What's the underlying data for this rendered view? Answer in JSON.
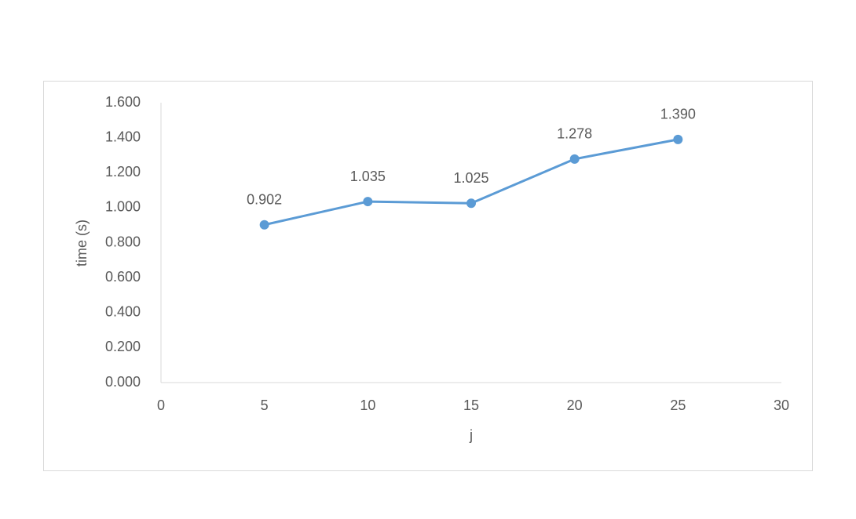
{
  "chart_data": {
    "type": "line",
    "x_label": "j",
    "y_label": "time (s)",
    "x": [
      5,
      10,
      15,
      20,
      25
    ],
    "values": [
      0.902,
      1.035,
      1.025,
      1.278,
      1.39
    ],
    "value_labels": [
      "0.902",
      "1.035",
      "1.025",
      "1.278",
      "1.390"
    ],
    "color": "#5b9bd5",
    "xlim": [
      0,
      30
    ],
    "xticks": [
      0,
      5,
      10,
      15,
      20,
      25,
      30
    ],
    "ylim": [
      0,
      1.6
    ],
    "yticks": [
      {
        "value": 0,
        "label": "0.000"
      },
      {
        "value": 0.2,
        "label": "0.200"
      },
      {
        "value": 0.4,
        "label": "0.400"
      },
      {
        "value": 0.6,
        "label": "0.600"
      },
      {
        "value": 0.8,
        "label": "0.800"
      },
      {
        "value": 1.0,
        "label": "1.000"
      },
      {
        "value": 1.2,
        "label": "1.200"
      },
      {
        "value": 1.4,
        "label": "1.400"
      },
      {
        "value": 1.6,
        "label": "1.600"
      }
    ],
    "grid": false
  }
}
